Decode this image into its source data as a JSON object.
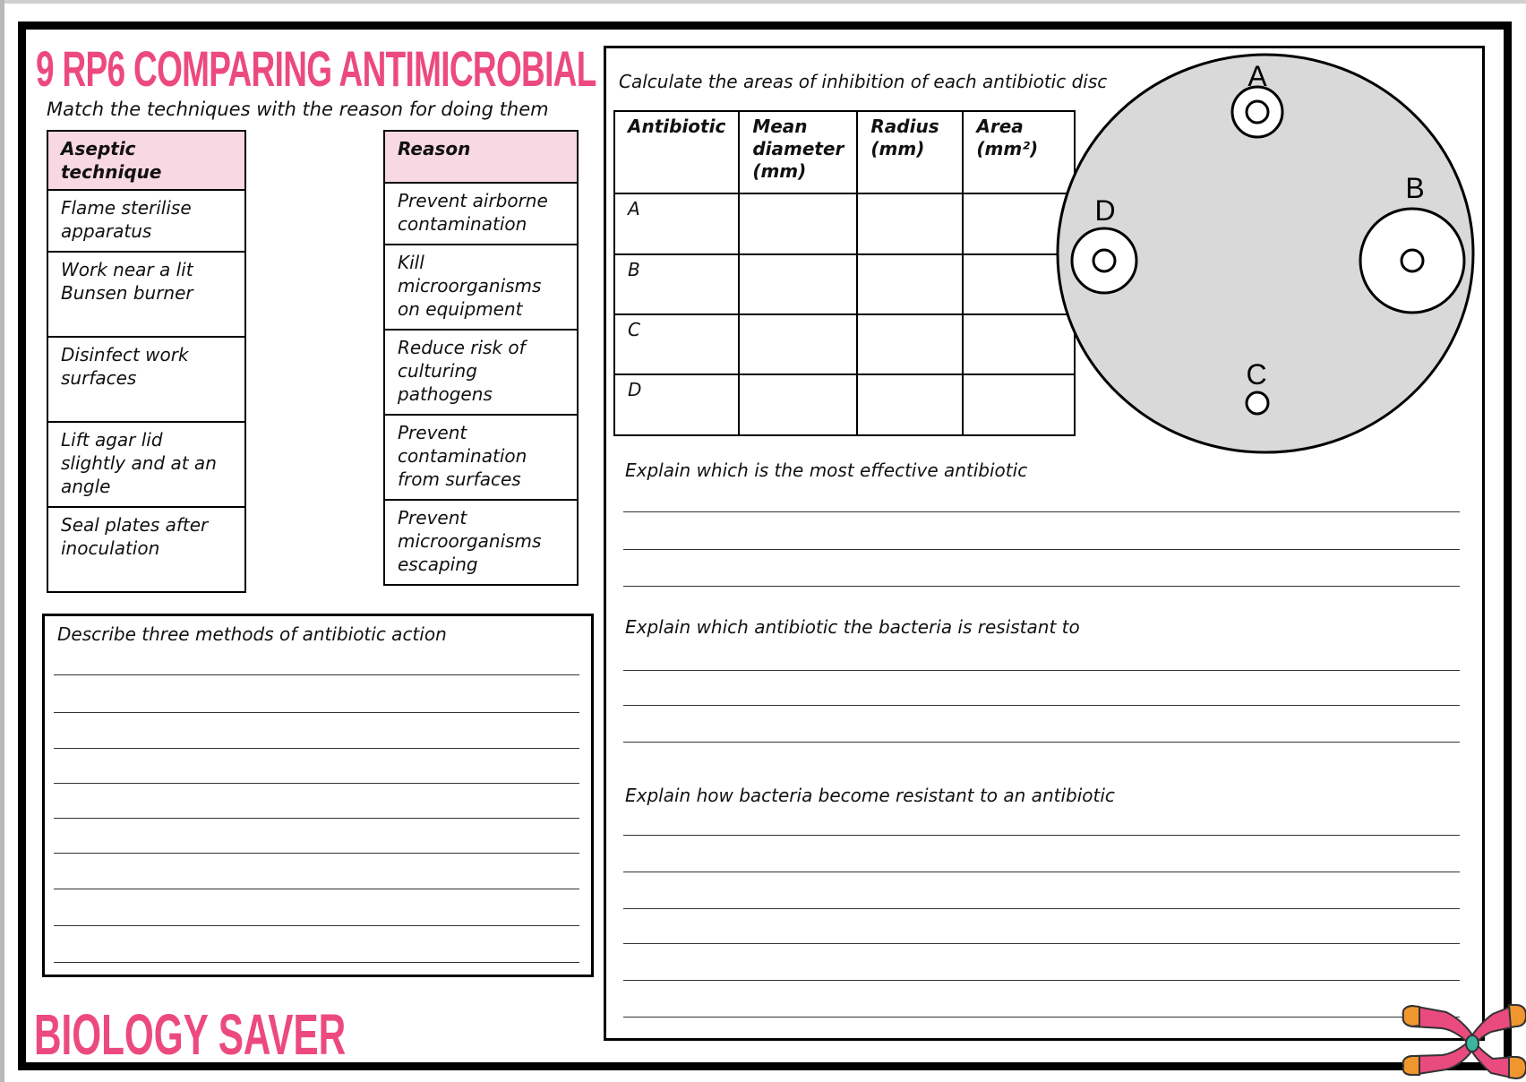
{
  "title": "9 RP6 COMPARING ANTIMICROBIAL",
  "match": {
    "instruction": "Match the techniques with the reason for doing them",
    "technique_header": "Aseptic technique",
    "reason_header": "Reason",
    "techniques": [
      "Flame sterilise apparatus",
      "Work near a lit Bunsen burner",
      "Disinfect work surfaces",
      "Lift agar lid slightly and at an angle",
      "Seal plates after inoculation"
    ],
    "reasons": [
      "Prevent airborne contamination",
      "Kill microorganisms on equipment",
      "Reduce risk of culturing pathogens",
      "Prevent contamination from surfaces",
      "Prevent microorganisms escaping"
    ]
  },
  "describe": {
    "prompt": "Describe three methods of antibiotic action"
  },
  "inhibition": {
    "prompt": "Calculate the areas of inhibition of each antibiotic disc",
    "headers": [
      "Antibiotic",
      "Mean diameter (mm)",
      "Radius (mm)",
      "Area (mm²)"
    ],
    "rows": [
      "A",
      "B",
      "C",
      "D"
    ]
  },
  "plate": {
    "labels": {
      "a": "A",
      "b": "B",
      "c": "C",
      "d": "D"
    },
    "agar_color": "#d9d9d9"
  },
  "questions": [
    "Explain which is the most effective antibiotic",
    "Explain which antibiotic the bacteria is resistant to",
    "Explain how bacteria become resistant to an antibiotic"
  ],
  "logo": "BIOLOGY SAVER",
  "colors": {
    "accent": "#ec4a7e",
    "header_fill": "#f8d8e2"
  }
}
